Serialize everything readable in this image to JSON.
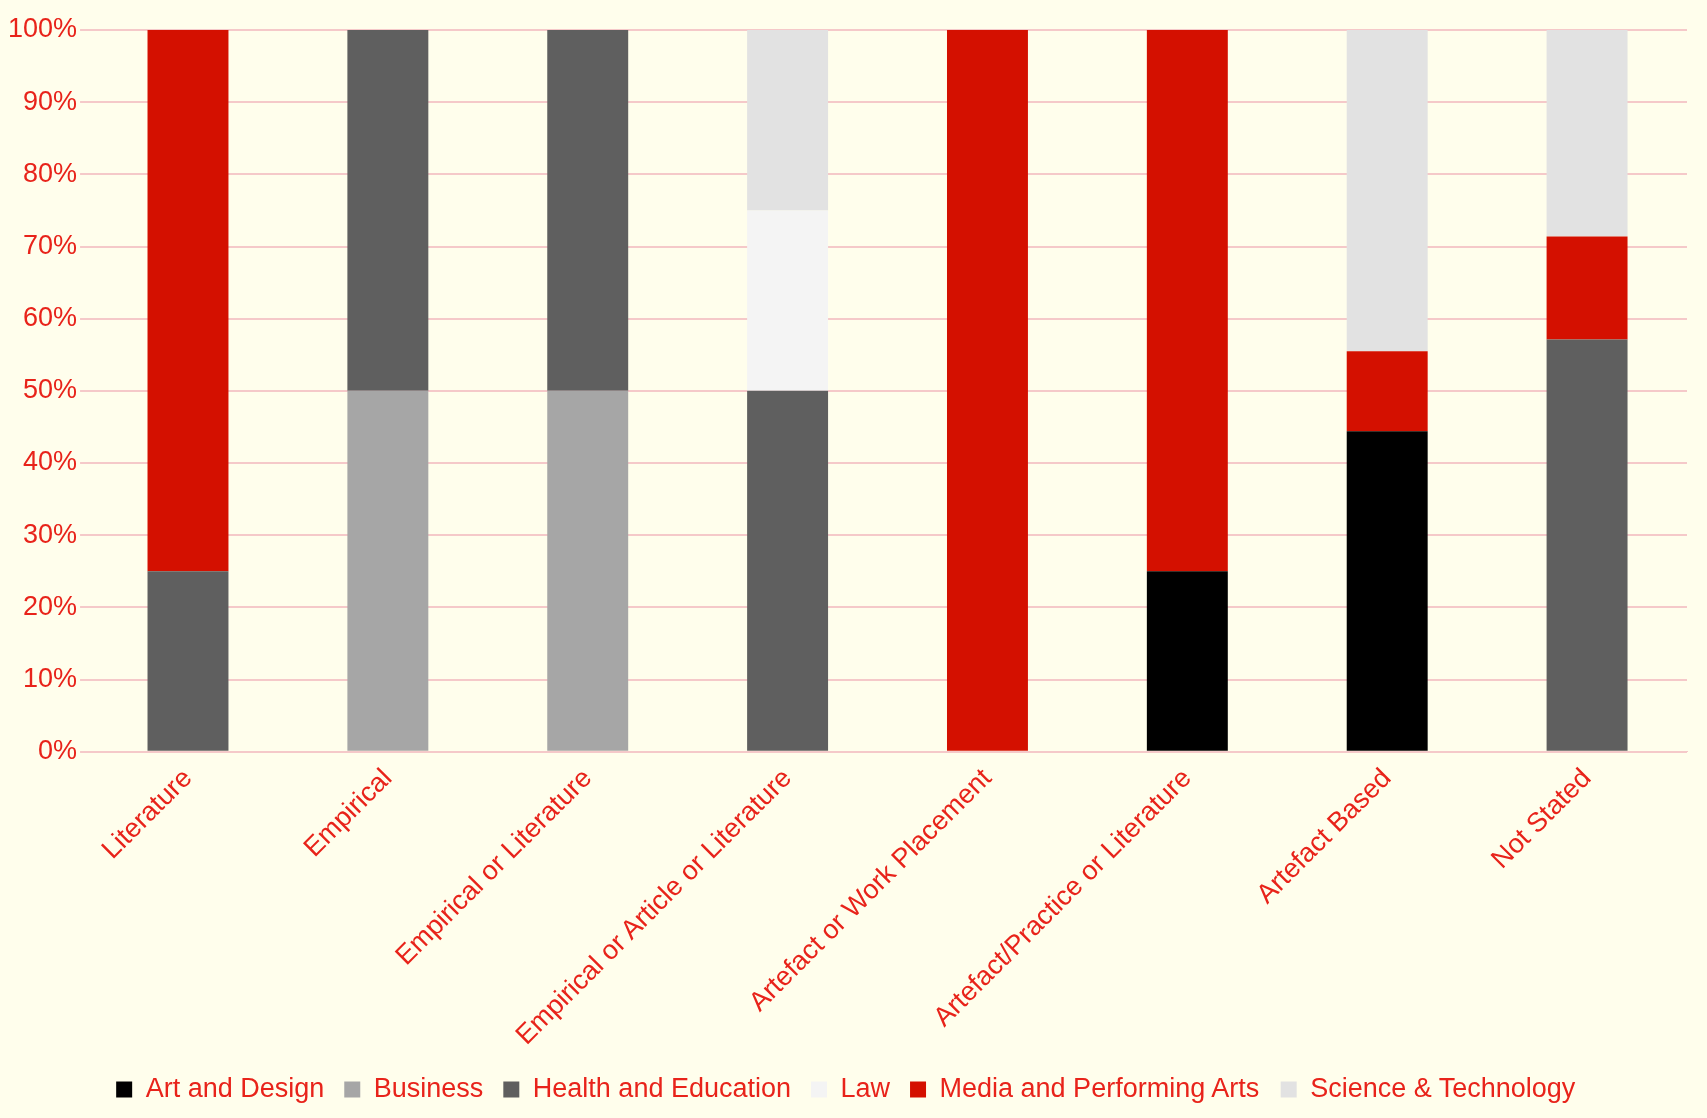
{
  "chart_data": {
    "type": "bar",
    "stacked": true,
    "categories": [
      "Literature",
      "Empirical",
      "Empirical or Literature",
      "Empirical or Article or Literature",
      "Artefact or Work Placement",
      "Artefact/Practice or Literature",
      "Artefact Based",
      "Not Stated"
    ],
    "series": [
      {
        "name": "Art and Design",
        "color": "#000000",
        "values": [
          0,
          0,
          0,
          0,
          0,
          25,
          44.4,
          0
        ]
      },
      {
        "name": "Business",
        "color": "#a6a6a6",
        "values": [
          0,
          50,
          50,
          0,
          0,
          0,
          0,
          0
        ]
      },
      {
        "name": "Health and Education",
        "color": "#5f5f5f",
        "values": [
          25,
          50,
          50,
          50,
          0,
          0,
          0,
          57.1
        ]
      },
      {
        "name": "Law",
        "color": "#f4f4f4",
        "values": [
          0,
          0,
          0,
          25,
          0,
          0,
          0,
          0
        ]
      },
      {
        "name": "Media and Performing Arts",
        "color": "#d41000",
        "values": [
          75,
          0,
          0,
          0,
          100,
          75,
          11.1,
          14.3
        ]
      },
      {
        "name": "Science & Technology",
        "color": "#e2e2e2",
        "values": [
          0,
          0,
          0,
          25,
          0,
          0,
          44.5,
          28.6
        ]
      }
    ],
    "ylim": [
      0,
      100
    ],
    "yticks": [
      {
        "value": 0,
        "label": "0%"
      },
      {
        "value": 10,
        "label": "10%"
      },
      {
        "value": 20,
        "label": "20%"
      },
      {
        "value": 30,
        "label": "30%"
      },
      {
        "value": 40,
        "label": "40%"
      },
      {
        "value": 50,
        "label": "50%"
      },
      {
        "value": 60,
        "label": "60%"
      },
      {
        "value": 70,
        "label": "70%"
      },
      {
        "value": 80,
        "label": "80%"
      },
      {
        "value": 90,
        "label": "90%"
      },
      {
        "value": 100,
        "label": "100%"
      }
    ],
    "grid": "y",
    "legend": "bottom"
  }
}
